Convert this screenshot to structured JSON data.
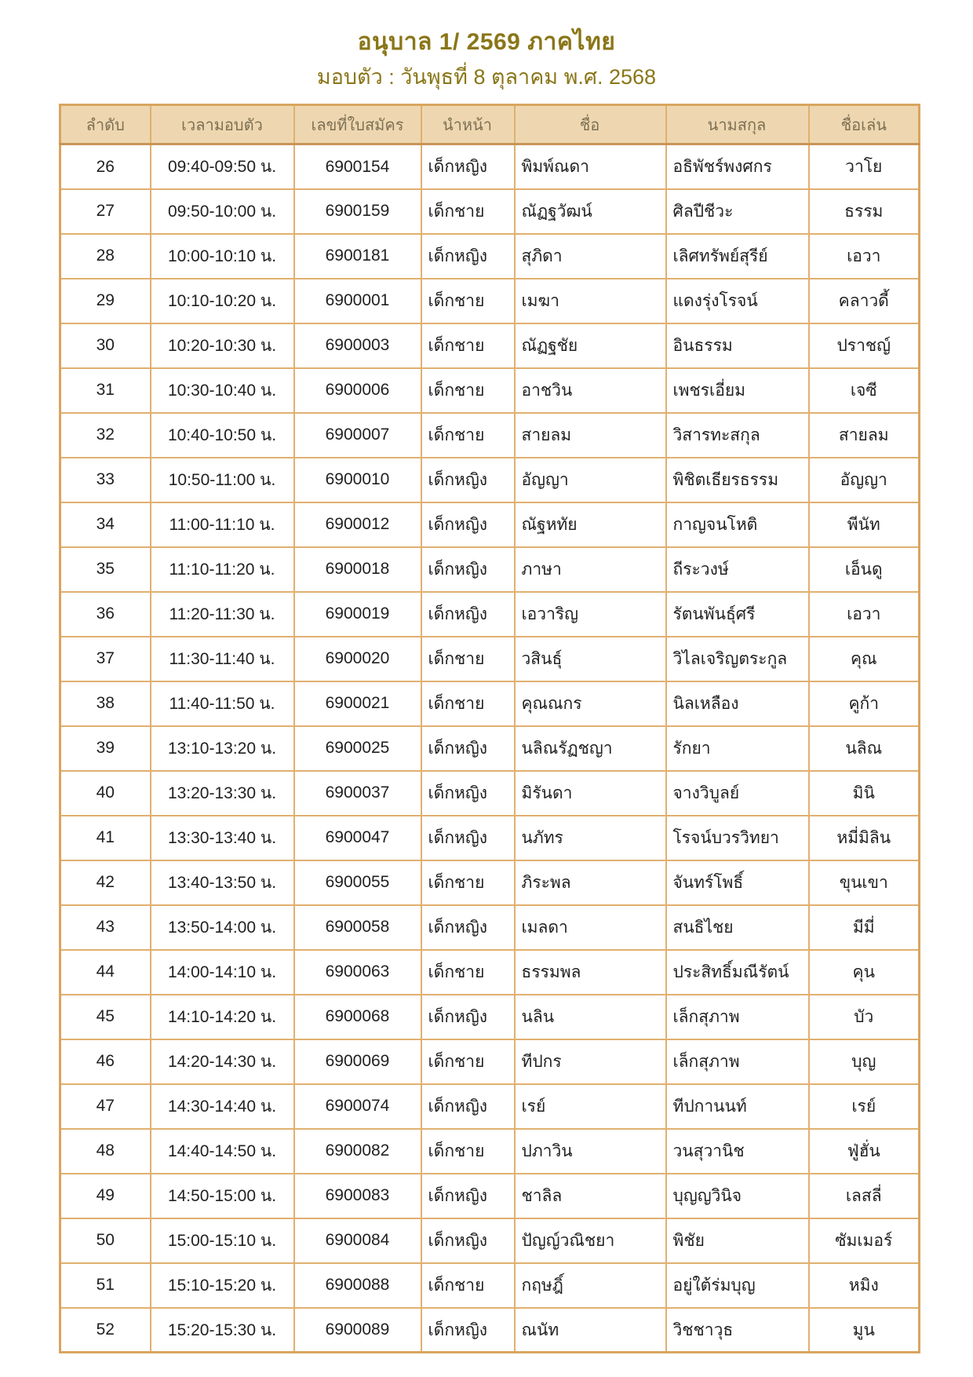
{
  "page": {
    "title": "อนุบาล 1/ 2569  ภาคไทย",
    "subtitle": "มอบตัว : วันพุธที่ 8 ตุลาคม พ.ศ. 2568"
  },
  "colors": {
    "title_text": "#8a7618",
    "header_bg": "#eed7b0",
    "grid_border": "#e0b070",
    "outer_border": "#d9a55f",
    "header_text": "#7d7054",
    "body_text": "#212121"
  },
  "table": {
    "columns": [
      "ลำดับ",
      "เวลามอบตัว",
      "เลขที่ใบสมัคร",
      "นำหน้า",
      "ชื่อ",
      "นามสกุล",
      "ชื่อเล่น"
    ],
    "column_keys": [
      "order",
      "handover-time",
      "application-no",
      "title-prefix",
      "first-name",
      "last-name",
      "nickname"
    ],
    "rows": [
      [
        "26",
        "09:40-09:50 น.",
        "6900154",
        "เด็กหญิง",
        "พิมพ์ณดา",
        "อธิพัชร์พงศกร",
        "วาโย"
      ],
      [
        "27",
        "09:50-10:00 น.",
        "6900159",
        "เด็กชาย",
        "ณัฏฐวัฒน์",
        "ศิลปีชีวะ",
        "ธรรม"
      ],
      [
        "28",
        "10:00-10:10 น.",
        "6900181",
        "เด็กหญิง",
        "สุภิดา",
        "เลิศทรัพย์สุรีย์",
        "เอวา"
      ],
      [
        "29",
        "10:10-10:20 น.",
        "6900001",
        "เด็กชาย",
        "เมฆา",
        "แดงรุ่งโรจน์",
        "คลาวดี้"
      ],
      [
        "30",
        "10:20-10:30 น.",
        "6900003",
        "เด็กชาย",
        "ณัฏฐชัย",
        "อินธรรม",
        "ปราชญ์"
      ],
      [
        "31",
        "10:30-10:40 น.",
        "6900006",
        "เด็กชาย",
        "อาชวิน",
        "เพชรเอี่ยม",
        "เจซี"
      ],
      [
        "32",
        "10:40-10:50 น.",
        "6900007",
        "เด็กชาย",
        "สายลม",
        "วิสารทะสกุล",
        "สายลม"
      ],
      [
        "33",
        "10:50-11:00 น.",
        "6900010",
        "เด็กหญิง",
        "อัญญา",
        "พิชิตเธียรธรรม",
        "อัญญา"
      ],
      [
        "34",
        "11:00-11:10 น.",
        "6900012",
        "เด็กหญิง",
        "ณัฐหทัย",
        "กาญจนโหติ",
        "พีนัท"
      ],
      [
        "35",
        "11:10-11:20 น.",
        "6900018",
        "เด็กหญิง",
        "ภาษา",
        "ถีระวงษ์",
        "เอ็นดู"
      ],
      [
        "36",
        "11:20-11:30 น.",
        "6900019",
        "เด็กหญิง",
        "เอวาริญ",
        "รัตนพันธุ์ศรี",
        "เอวา"
      ],
      [
        "37",
        "11:30-11:40 น.",
        "6900020",
        "เด็กชาย",
        "วสินธุ์",
        "วิไลเจริญตระกูล",
        "คุณ"
      ],
      [
        "38",
        "11:40-11:50 น.",
        "6900021",
        "เด็กชาย",
        "คุณณกร",
        "นิลเหลือง",
        "คูก้า"
      ],
      [
        "39",
        "13:10-13:20 น.",
        "6900025",
        "เด็กหญิง",
        "นลิณรัฏชญา",
        "รักยา",
        "นลิณ"
      ],
      [
        "40",
        "13:20-13:30 น.",
        "6900037",
        "เด็กหญิง",
        "มิรันดา",
        "จางวิบูลย์",
        "มินิ"
      ],
      [
        "41",
        "13:30-13:40 น.",
        "6900047",
        "เด็กหญิง",
        "นภัทร",
        "โรจน์บวรวิทยา",
        "หมี่มิลิน"
      ],
      [
        "42",
        "13:40-13:50 น.",
        "6900055",
        "เด็กชาย",
        "ภิระพล",
        "จันทร์โพธิ์",
        "ขุนเขา"
      ],
      [
        "43",
        "13:50-14:00 น.",
        "6900058",
        "เด็กหญิง",
        "เมลดา",
        "สนธิไชย",
        "มีมี่"
      ],
      [
        "44",
        "14:00-14:10 น.",
        "6900063",
        "เด็กชาย",
        "ธรรมพล",
        "ประสิทธิ์มณีรัตน์",
        "คุน"
      ],
      [
        "45",
        "14:10-14:20 น.",
        "6900068",
        "เด็กหญิง",
        "นลิน",
        "เล็กสุภาพ",
        "บัว"
      ],
      [
        "46",
        "14:20-14:30 น.",
        "6900069",
        "เด็กชาย",
        "ทีปกร",
        "เล็กสุภาพ",
        "บุญ"
      ],
      [
        "47",
        "14:30-14:40 น.",
        "6900074",
        "เด็กหญิง",
        "เรย์",
        "ทีปกานนท์",
        "เรย์"
      ],
      [
        "48",
        "14:40-14:50 น.",
        "6900082",
        "เด็กชาย",
        "ปภาวิน",
        "วนสุวานิช",
        "ฟู่ฮั่น"
      ],
      [
        "49",
        "14:50-15:00 น.",
        "6900083",
        "เด็กหญิง",
        "ชาลิล",
        "บุญญวินิจ",
        "เลสลี่"
      ],
      [
        "50",
        "15:00-15:10 น.",
        "6900084",
        "เด็กหญิง",
        "ปัญญ์วณิชยา",
        "พิชัย",
        "ซัมเมอร์"
      ],
      [
        "51",
        "15:10-15:20 น.",
        "6900088",
        "เด็กชาย",
        "กฤษฎิ์",
        "อยู่ใต้ร่มบุญ",
        "หมิง"
      ],
      [
        "52",
        "15:20-15:30 น.",
        "6900089",
        "เด็กหญิง",
        "ณนัท",
        "วิชชาวุธ",
        "มูน"
      ]
    ]
  }
}
